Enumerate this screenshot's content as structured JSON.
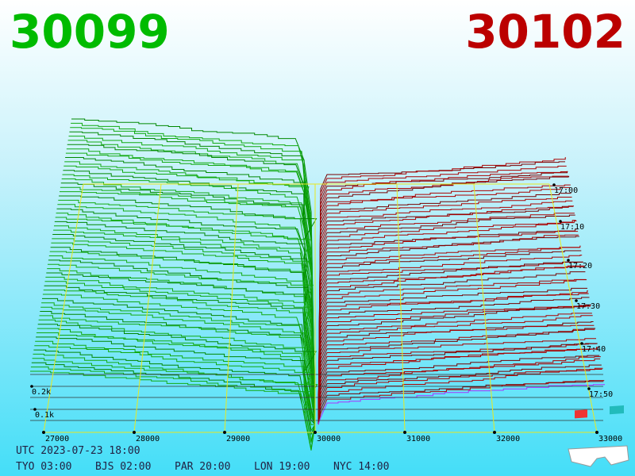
{
  "header": {
    "bid": "30099",
    "ask": "30102"
  },
  "x_axis": {
    "labels": [
      "27000",
      "28000",
      "29000",
      "30000",
      "31000",
      "32000",
      "33000"
    ]
  },
  "time_labels": [
    "17:00",
    "17:10",
    "17:20",
    "17:30",
    "17:40",
    "17:50"
  ],
  "depth_labels": [
    "0.2k",
    "0.1k"
  ],
  "footer": {
    "utc": "UTC 2023-07-23 18:00",
    "clocks": [
      "TYO 03:00",
      "BJS 02:00",
      "PAR 20:00",
      "LON 19:00",
      "NYC 14:00"
    ]
  }
}
